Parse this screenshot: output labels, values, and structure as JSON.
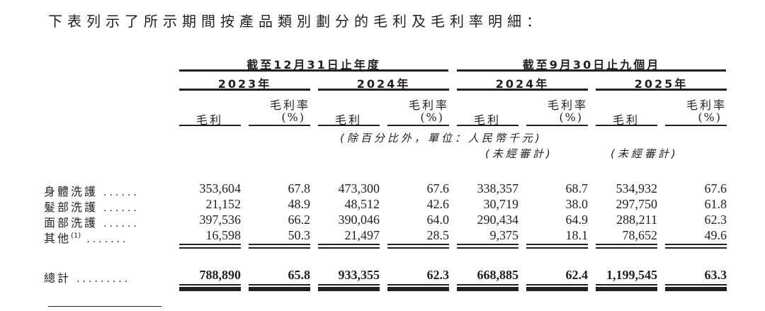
{
  "intro": "下表列示了所示期間按產品類別劃分的毛利及毛利率明細：",
  "groups": [
    "截至12月31日止年度",
    "截至9月30日止九個月"
  ],
  "years": [
    "2023年",
    "2024年",
    "2024年",
    "2025年"
  ],
  "col_headers": {
    "gross_profit": "毛利",
    "margin_line1": "毛利率",
    "margin_line2": "(%)"
  },
  "unit_note": "(除百分比外，單位：人民幣千元)",
  "unaudited_note": "(未經審計)",
  "rows": [
    {
      "label": "身體洗護",
      "sup": "",
      "values": [
        "353,604",
        "67.8",
        "473,300",
        "67.6",
        "338,357",
        "68.7",
        "534,932",
        "67.6"
      ]
    },
    {
      "label": "髮部洗護",
      "sup": "",
      "values": [
        "21,152",
        "48.9",
        "48,512",
        "42.6",
        "30,719",
        "38.0",
        "297,750",
        "61.8"
      ]
    },
    {
      "label": "面部洗護",
      "sup": "",
      "values": [
        "397,536",
        "66.2",
        "390,046",
        "64.0",
        "290,434",
        "64.9",
        "288,211",
        "62.3"
      ]
    },
    {
      "label": "其他",
      "sup": "(1)",
      "values": [
        "16,598",
        "50.3",
        "21,497",
        "28.5",
        "9,375",
        "18.1",
        "78,652",
        "49.6"
      ]
    }
  ],
  "total": {
    "label": "總計",
    "values": [
      "788,890",
      "65.8",
      "933,355",
      "62.3",
      "668,885",
      "62.4",
      "1,199,545",
      "63.3"
    ]
  },
  "leader_dots": [
    "......",
    "......",
    "......",
    ".......",
    "........."
  ]
}
